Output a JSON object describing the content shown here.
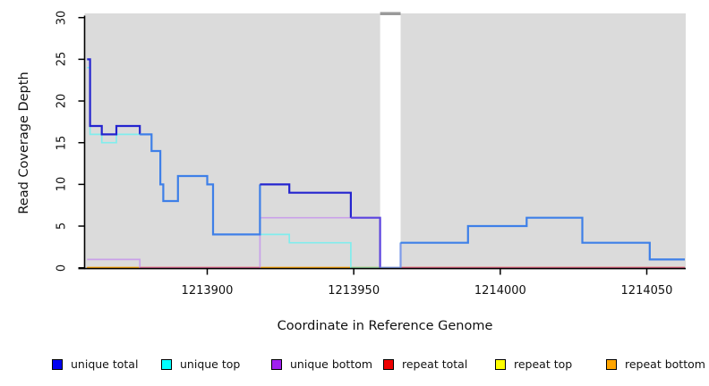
{
  "chart_data": {
    "type": "line",
    "subtype": "step-after",
    "title": "",
    "xlabel": "Coordinate in Reference Genome",
    "ylabel": "Read Coverage Depth",
    "xlim": [
      1213859,
      1214063
    ],
    "ylim": [
      0,
      30
    ],
    "x_ticks": [
      1213900,
      1213950,
      1214000,
      1214050
    ],
    "y_ticks": [
      0,
      5,
      10,
      15,
      20,
      25,
      30
    ],
    "grid": false,
    "legend_position": "bottom",
    "plot_background": "#dbdbdb",
    "gap_region_x": [
      1213959,
      1213966
    ],
    "series": [
      {
        "name": "unique total",
        "color": "#0000f0",
        "points": [
          [
            1213859,
            25
          ],
          [
            1213860,
            17
          ],
          [
            1213864,
            16
          ],
          [
            1213869,
            17
          ],
          [
            1213877,
            16
          ],
          [
            1213881,
            14
          ],
          [
            1213884,
            10
          ],
          [
            1213885,
            8
          ],
          [
            1213890,
            11
          ],
          [
            1213900,
            10
          ],
          [
            1213902,
            4
          ],
          [
            1213918,
            10
          ],
          [
            1213928,
            9
          ],
          [
            1213949,
            6
          ],
          [
            1213959,
            0
          ],
          [
            1213966,
            3
          ],
          [
            1213989,
            5
          ],
          [
            1214009,
            6
          ],
          [
            1214028,
            3
          ],
          [
            1214051,
            1
          ],
          [
            1214063,
            1
          ]
        ]
      },
      {
        "name": "unique top",
        "color": "#00ffff",
        "points": [
          [
            1213859,
            24
          ],
          [
            1213860,
            16
          ],
          [
            1213864,
            15
          ],
          [
            1213869,
            16
          ],
          [
            1213881,
            14
          ],
          [
            1213884,
            10
          ],
          [
            1213885,
            8
          ],
          [
            1213890,
            11
          ],
          [
            1213900,
            10
          ],
          [
            1213902,
            4
          ],
          [
            1213928,
            3
          ],
          [
            1213949,
            0
          ],
          [
            1213966,
            3
          ],
          [
            1213989,
            5
          ],
          [
            1214009,
            6
          ],
          [
            1214028,
            3
          ],
          [
            1214051,
            1
          ],
          [
            1214063,
            1
          ]
        ]
      },
      {
        "name": "unique bottom",
        "color": "#a020f0",
        "points": [
          [
            1213859,
            1
          ],
          [
            1213877,
            0
          ],
          [
            1213918,
            6
          ],
          [
            1213959,
            0
          ],
          [
            1214063,
            0
          ]
        ]
      },
      {
        "name": "repeat total",
        "color": "#ee0000",
        "points": [
          [
            1213859,
            0
          ],
          [
            1214063,
            0
          ]
        ]
      },
      {
        "name": "repeat top",
        "color": "#ffff00",
        "points": [
          [
            1213859,
            0
          ],
          [
            1214063,
            0
          ]
        ]
      },
      {
        "name": "repeat bottom",
        "color": "#ffa500",
        "points": [
          [
            1213859,
            0
          ],
          [
            1214063,
            0
          ]
        ]
      }
    ]
  },
  "axes": {
    "x_tick_labels": [
      "1213900",
      "1213950",
      "1214000",
      "1214050"
    ],
    "y_tick_labels": [
      "0",
      "5",
      "10",
      "15",
      "20",
      "25",
      "30"
    ]
  },
  "legend": [
    {
      "label": "unique total",
      "color": "#0000f0"
    },
    {
      "label": "unique top",
      "color": "#00ffff"
    },
    {
      "label": "unique bottom",
      "color": "#a020f0"
    },
    {
      "label": "repeat total",
      "color": "#ee0000"
    },
    {
      "label": "repeat top",
      "color": "#ffff00"
    },
    {
      "label": "repeat bottom",
      "color": "#ffa500"
    }
  ],
  "render": {
    "line_colors": {
      "unique bottom": "#c9a0e9",
      "unique top": "#80eded",
      "repeat total": "#ee0000",
      "repeat top": "#ffff00",
      "repeat bottom": "#ffa500"
    },
    "blue_color_ranges": [
      {
        "from": 1213859,
        "to": 1213877,
        "color": "#2424cf"
      },
      {
        "from": 1213877,
        "to": 1213918,
        "color": "#3e7fe8"
      },
      {
        "from": 1213918,
        "to": 1213949,
        "color": "#2424cf"
      },
      {
        "from": 1213949,
        "to": 1213959,
        "color": "#5b43df"
      },
      {
        "from": 1213959,
        "to": 1213966,
        "color": "#7d9bea"
      },
      {
        "from": 1213966,
        "to": 1214063,
        "color": "#3e7fe8"
      }
    ],
    "zero_line_overlays": [
      {
        "from": 1213877,
        "to": 1213918,
        "color": "#e0639c"
      },
      {
        "from": 1213949,
        "to": 1213959,
        "color": "#8fd79f"
      },
      {
        "from": 1213966,
        "to": 1214063,
        "color": "#dc5a86"
      }
    ],
    "gap_top_bar_color": "#9a9a9a",
    "legend_x_positions": [
      58,
      180,
      303,
      428,
      553,
      677
    ]
  }
}
